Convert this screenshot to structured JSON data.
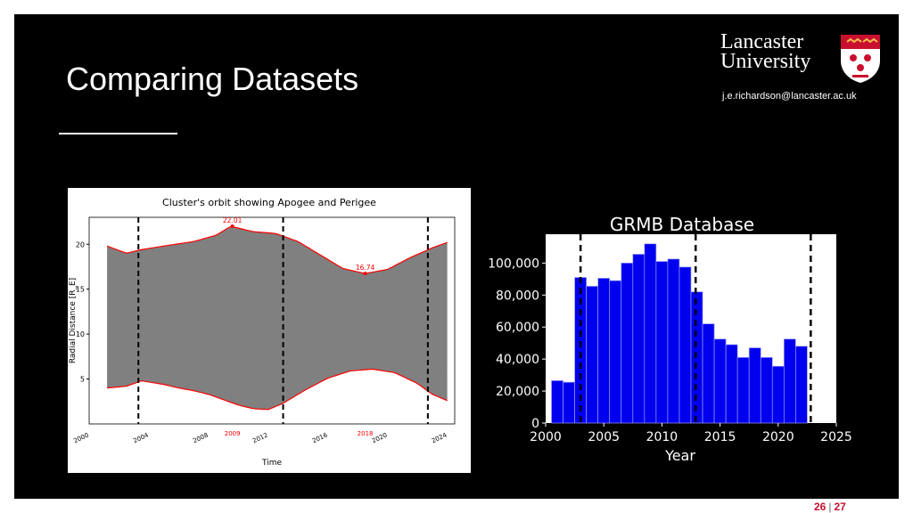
{
  "slide": {
    "title": "Comparing Datasets",
    "email": "j.e.richardson@lancaster.ac.uk",
    "logo": {
      "line1": "Lancaster",
      "line2": "University"
    },
    "page_current": "26",
    "page_total": "27"
  },
  "chart_data": [
    {
      "type": "area",
      "title": "Cluster's orbit showing Apogee and Perigee",
      "xlabel": "Time",
      "ylabel": "Radial Distance [R_E]",
      "xlim": [
        2000,
        2024.5
      ],
      "ylim": [
        0,
        23
      ],
      "xticks": [
        2000,
        2004,
        2008,
        2012,
        2016,
        2020,
        2024
      ],
      "yticks": [
        5,
        10,
        15,
        20
      ],
      "series": [
        {
          "role": "apogee",
          "x": [
            2001.2,
            2002.5,
            2003.5,
            2005,
            2007,
            2008.5,
            2009.5,
            2011,
            2012.5,
            2014,
            2015.5,
            2017,
            2018.5,
            2020,
            2021.5,
            2023,
            2024.0
          ],
          "values": [
            19.8,
            19.0,
            19.4,
            19.8,
            20.3,
            21.0,
            22.0,
            21.4,
            21.2,
            20.3,
            18.8,
            17.3,
            16.74,
            17.2,
            18.5,
            19.6,
            20.2
          ]
        },
        {
          "role": "perigee",
          "x": [
            2001.2,
            2002.5,
            2003.5,
            2005,
            2006,
            2007,
            2008,
            2009,
            2010,
            2011,
            2012,
            2013,
            2014.5,
            2016,
            2017.5,
            2019,
            2020.5,
            2022,
            2023,
            2024.0
          ],
          "values": [
            4.0,
            4.2,
            4.8,
            4.4,
            4.0,
            3.7,
            3.3,
            2.7,
            2.1,
            1.7,
            1.6,
            2.3,
            3.8,
            5.1,
            5.9,
            6.1,
            5.7,
            4.5,
            3.3,
            2.6
          ]
        }
      ],
      "annotations": [
        {
          "text": "22.01",
          "x": 2009.6,
          "y": 22.01
        },
        {
          "text": "16.74",
          "x": 2018.5,
          "y": 16.74
        },
        {
          "text": "2009",
          "x": 2009.6,
          "y": 0
        },
        {
          "text": "2018",
          "x": 2018.5,
          "y": 0
        }
      ],
      "vlines": [
        2003.3,
        2013.0,
        2022.7
      ],
      "colors": {
        "fill": "#808080",
        "line": "#ff0000",
        "vline": "#000000"
      }
    },
    {
      "type": "bar",
      "title": "GRMB Database",
      "xlabel": "Year",
      "ylabel": "",
      "xlim": [
        2000,
        2025
      ],
      "ylim": [
        0,
        118000
      ],
      "xticks": [
        2000,
        2005,
        2010,
        2015,
        2020,
        2025
      ],
      "yticks": [
        0,
        20000,
        40000,
        60000,
        80000,
        100000
      ],
      "ytick_labels": [
        "0",
        "20,000",
        "40,000",
        "60,000",
        "80,000",
        "100,000"
      ],
      "categories": [
        2001,
        2002,
        2003,
        2004,
        2005,
        2006,
        2007,
        2008,
        2009,
        2010,
        2011,
        2012,
        2013,
        2014,
        2015,
        2016,
        2017,
        2018,
        2019,
        2020,
        2021,
        2022
      ],
      "values": [
        26500,
        25500,
        91000,
        85500,
        90500,
        89000,
        100000,
        105500,
        112000,
        101000,
        102500,
        97500,
        82000,
        62000,
        52500,
        49000,
        41000,
        47000,
        41000,
        35500,
        52500,
        48000
      ],
      "vlines": [
        2003.0,
        2012.9,
        2022.8
      ],
      "colors": {
        "bar": "#0000ee",
        "edge": "#9a9aff",
        "vline": "#000000"
      }
    }
  ]
}
